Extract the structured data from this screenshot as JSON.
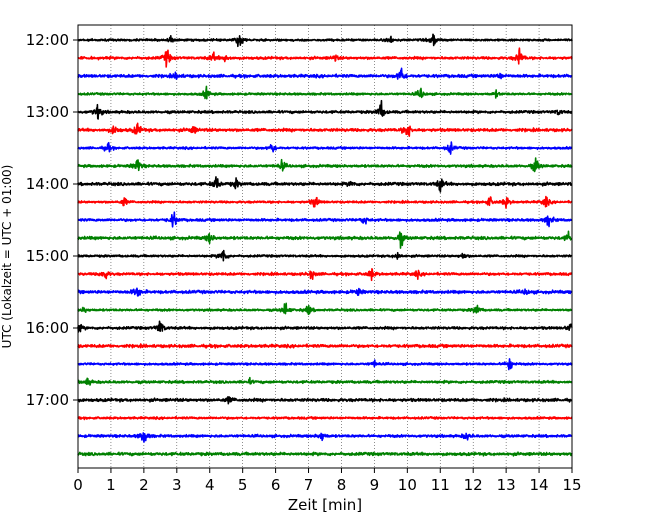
{
  "chart_data": {
    "type": "line",
    "title": "",
    "xlabel": "Zeit  [min]",
    "ylabel": "UTC (Lokalzeit = UTC + 01:00)",
    "xlim": [
      0,
      15
    ],
    "x_ticks": [
      "0",
      "1",
      "2",
      "3",
      "4",
      "5",
      "6",
      "7",
      "8",
      "9",
      "10",
      "11",
      "12",
      "13",
      "14",
      "15"
    ],
    "y_ticks": [
      "12:00",
      "13:00",
      "14:00",
      "15:00",
      "16:00",
      "17:00"
    ],
    "grid": "vertical dotted",
    "trace_interval_min": 15,
    "colors": [
      "#000000",
      "#ff0000",
      "#0000ff",
      "#008000"
    ],
    "series": [
      {
        "start": "12:00",
        "color": "#000000",
        "events": [
          [
            4.9,
            0.9
          ],
          [
            10.8,
            0.7
          ],
          [
            9.5,
            0.35
          ],
          [
            2.8,
            0.3
          ]
        ]
      },
      {
        "start": "12:15",
        "color": "#ff0000",
        "events": [
          [
            2.7,
            0.9
          ],
          [
            4.1,
            0.45
          ],
          [
            4.5,
            0.4
          ],
          [
            13.4,
            1.0
          ],
          [
            7.8,
            0.3
          ]
        ]
      },
      {
        "start": "12:30",
        "color": "#0000ff",
        "events": [
          [
            9.8,
            1.0
          ],
          [
            3.0,
            0.3
          ],
          [
            12.8,
            0.3
          ]
        ]
      },
      {
        "start": "12:45",
        "color": "#008000",
        "events": [
          [
            3.9,
            0.6
          ],
          [
            10.4,
            0.6
          ],
          [
            12.7,
            0.3
          ]
        ]
      },
      {
        "start": "13:00",
        "color": "#000000",
        "events": [
          [
            0.6,
            0.8
          ],
          [
            9.2,
            1.0
          ],
          [
            14.6,
            0.3
          ]
        ]
      },
      {
        "start": "13:15",
        "color": "#ff0000",
        "events": [
          [
            1.1,
            0.5
          ],
          [
            1.8,
            0.7
          ],
          [
            3.5,
            0.4
          ],
          [
            10.0,
            1.0
          ]
        ]
      },
      {
        "start": "13:30",
        "color": "#0000ff",
        "events": [
          [
            0.9,
            0.5
          ],
          [
            5.9,
            0.6
          ],
          [
            11.3,
            0.6
          ]
        ]
      },
      {
        "start": "13:45",
        "color": "#008000",
        "events": [
          [
            1.8,
            0.8
          ],
          [
            6.2,
            0.5
          ],
          [
            13.9,
            0.8
          ]
        ]
      },
      {
        "start": "14:00",
        "color": "#000000",
        "events": [
          [
            4.2,
            0.7
          ],
          [
            4.8,
            0.4
          ],
          [
            8.3,
            0.3
          ],
          [
            11.0,
            0.7
          ]
        ]
      },
      {
        "start": "14:15",
        "color": "#ff0000",
        "events": [
          [
            1.4,
            0.45
          ],
          [
            7.2,
            0.7
          ],
          [
            12.5,
            0.5
          ],
          [
            13.0,
            0.6
          ],
          [
            14.2,
            0.6
          ]
        ]
      },
      {
        "start": "14:30",
        "color": "#0000ff",
        "events": [
          [
            2.9,
            0.8
          ],
          [
            8.7,
            0.45
          ],
          [
            14.3,
            0.7
          ]
        ]
      },
      {
        "start": "14:45",
        "color": "#008000",
        "events": [
          [
            4.0,
            0.55
          ],
          [
            9.8,
            0.75
          ],
          [
            14.9,
            0.5
          ]
        ]
      },
      {
        "start": "15:00",
        "color": "#000000",
        "events": [
          [
            4.4,
            0.9
          ],
          [
            9.7,
            0.4
          ],
          [
            11.7,
            0.3
          ]
        ]
      },
      {
        "start": "15:15",
        "color": "#ff0000",
        "events": [
          [
            0.8,
            0.7
          ],
          [
            7.1,
            0.45
          ],
          [
            8.9,
            0.55
          ],
          [
            10.3,
            0.3
          ]
        ]
      },
      {
        "start": "15:30",
        "color": "#0000ff",
        "events": [
          [
            1.8,
            0.75
          ],
          [
            8.5,
            0.35
          ],
          [
            13.6,
            0.3
          ]
        ]
      },
      {
        "start": "15:45",
        "color": "#008000",
        "events": [
          [
            6.3,
            0.75
          ],
          [
            7.0,
            0.5
          ],
          [
            12.1,
            0.6
          ],
          [
            0.2,
            0.3
          ]
        ]
      },
      {
        "start": "16:00",
        "color": "#000000",
        "events": [
          [
            2.5,
            0.8
          ],
          [
            0.0,
            0.7
          ],
          [
            15.0,
            1.0
          ]
        ]
      },
      {
        "start": "16:15",
        "color": "#ff0000",
        "events": []
      },
      {
        "start": "16:30",
        "color": "#0000ff",
        "events": [
          [
            13.1,
            0.75
          ],
          [
            9.0,
            0.3
          ]
        ]
      },
      {
        "start": "16:45",
        "color": "#008000",
        "events": [
          [
            0.3,
            0.35
          ],
          [
            5.2,
            0.25
          ]
        ]
      },
      {
        "start": "17:00",
        "color": "#000000",
        "events": [
          [
            4.6,
            0.35
          ]
        ]
      },
      {
        "start": "17:15",
        "color": "#ff0000",
        "events": []
      },
      {
        "start": "17:30",
        "color": "#0000ff",
        "events": [
          [
            2.0,
            0.9
          ],
          [
            7.4,
            0.5
          ],
          [
            11.8,
            0.4
          ]
        ]
      },
      {
        "start": "17:45",
        "color": "#008000",
        "events": []
      }
    ]
  }
}
